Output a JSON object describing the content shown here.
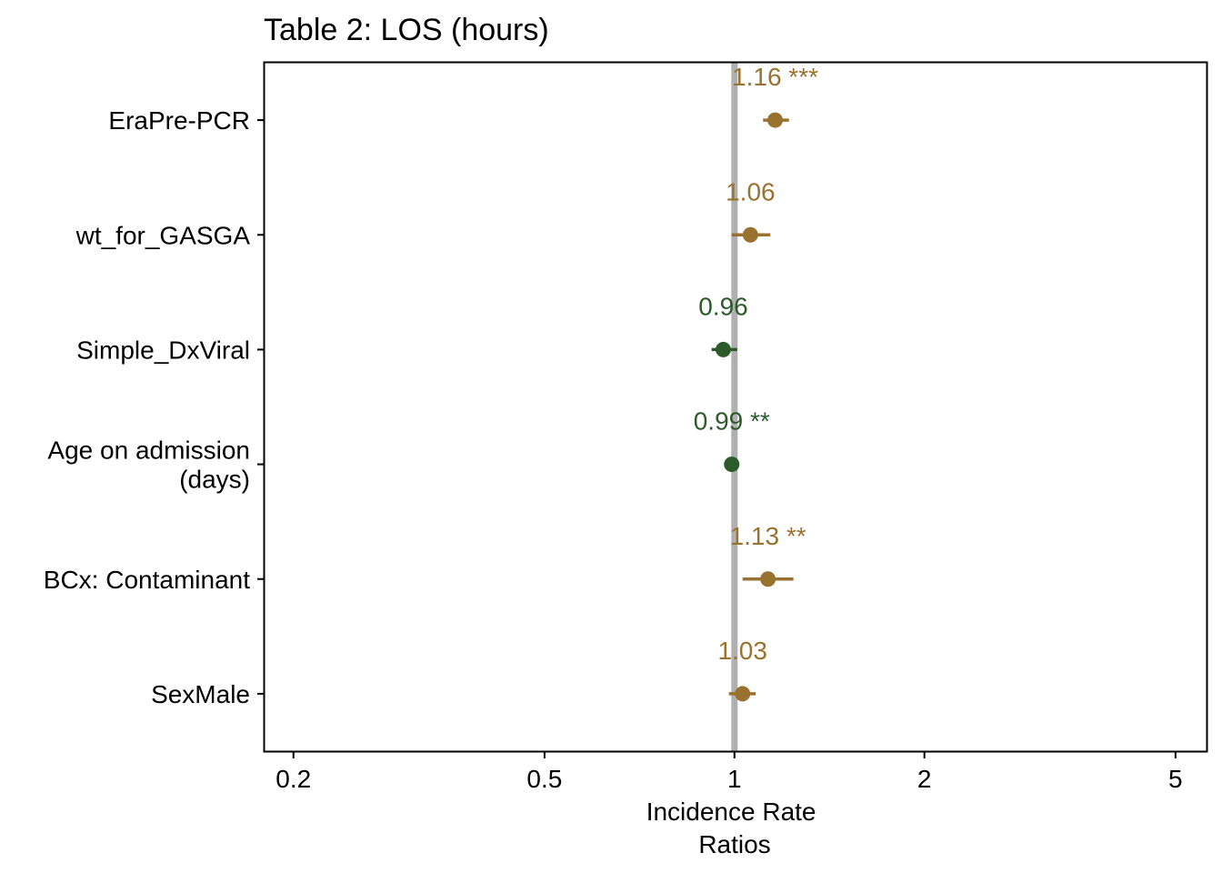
{
  "chart_data": {
    "type": "scatter",
    "subtype": "forest-plot",
    "title": "Table 2: LOS (hours)",
    "xlabel_lines": [
      "Incidence Rate",
      "Ratios"
    ],
    "x_scale": "log",
    "xlim": [
      0.18,
      5.6
    ],
    "x_ticks": [
      0.2,
      0.5,
      1,
      2,
      5
    ],
    "x_tick_labels": [
      "0.2",
      "0.5",
      "1",
      "2",
      "5"
    ],
    "reference_line": 1,
    "grid": false,
    "colors": {
      "positive": "#9A7230",
      "negative": "#2C5A2A",
      "reference": "#B0B0B0"
    },
    "terms": [
      {
        "label_lines": [
          "EraPre-PCR"
        ],
        "estimate": 1.16,
        "ci_low": 1.11,
        "ci_high": 1.22,
        "value_label": "1.16 ***"
      },
      {
        "label_lines": [
          "wt_for_GASGA"
        ],
        "estimate": 1.06,
        "ci_low": 0.99,
        "ci_high": 1.14,
        "value_label": "1.06"
      },
      {
        "label_lines": [
          "Simple_DxViral"
        ],
        "estimate": 0.96,
        "ci_low": 0.92,
        "ci_high": 1.01,
        "value_label": "0.96"
      },
      {
        "label_lines": [
          "Age on admission",
          "(days)"
        ],
        "estimate": 0.99,
        "ci_low": 0.985,
        "ci_high": 0.995,
        "value_label": "0.99 **"
      },
      {
        "label_lines": [
          "BCx: Contaminant"
        ],
        "estimate": 1.13,
        "ci_low": 1.03,
        "ci_high": 1.24,
        "value_label": "1.13 **"
      },
      {
        "label_lines": [
          "SexMale"
        ],
        "estimate": 1.03,
        "ci_low": 0.98,
        "ci_high": 1.08,
        "value_label": "1.03"
      }
    ]
  }
}
